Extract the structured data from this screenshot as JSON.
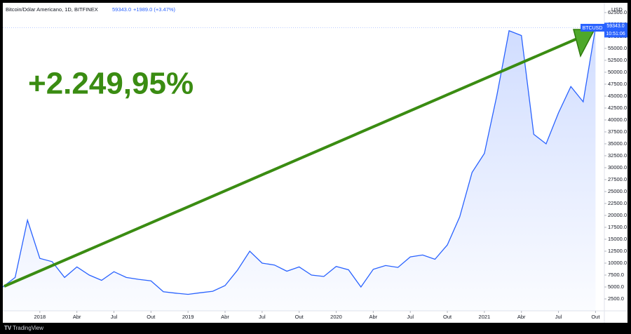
{
  "header": {
    "symbol": "Bitcoin/Dólar Americano, 1D, BITFINEX",
    "change": "+1989.0 (+3.47%)",
    "currency": "USD",
    "countdown": "10:51:06",
    "brand": "TradingView"
  },
  "chart_data": {
    "type": "line",
    "annotation": "+2.249,95%",
    "last_price": {
      "value": 59343,
      "label": "59343.0"
    },
    "x": [
      "2017-10",
      "2017-11",
      "2017-12",
      "2018-01",
      "2018-02",
      "2018-03",
      "2018-04",
      "2018-05",
      "2018-06",
      "2018-07",
      "2018-08",
      "2018-09",
      "2018-10",
      "2018-11",
      "2018-12",
      "2019-01",
      "2019-02",
      "2019-03",
      "2019-04",
      "2019-05",
      "2019-06",
      "2019-07",
      "2019-08",
      "2019-09",
      "2019-10",
      "2019-11",
      "2019-12",
      "2020-01",
      "2020-02",
      "2020-03",
      "2020-04",
      "2020-05",
      "2020-06",
      "2020-07",
      "2020-08",
      "2020-09",
      "2020-10",
      "2020-11",
      "2020-12",
      "2021-01",
      "2021-02",
      "2021-03",
      "2021-04",
      "2021-05",
      "2021-06",
      "2021-07",
      "2021-08",
      "2021-09",
      "2021-10"
    ],
    "series": [
      {
        "name": "BTCUSD",
        "color": "#2962ff",
        "values": [
          5000,
          7000,
          19000,
          11000,
          10300,
          7000,
          9200,
          7500,
          6400,
          8200,
          7000,
          6600,
          6300,
          4000,
          3700,
          3450,
          3800,
          4100,
          5300,
          8500,
          12500,
          10000,
          9600,
          8300,
          9200,
          7500,
          7200,
          9300,
          8600,
          5000,
          8700,
          9500,
          9100,
          11300,
          11700,
          10800,
          13800,
          19700,
          29000,
          33000,
          45000,
          58700,
          57700,
          37000,
          35000,
          41500,
          47000,
          43800,
          59343
        ]
      }
    ],
    "xlim": [
      "2017-10",
      "2021-11"
    ],
    "xticks": [
      {
        "value": "2018-01",
        "label": "2018"
      },
      {
        "value": "2018-04",
        "label": "Abr"
      },
      {
        "value": "2018-07",
        "label": "Jul"
      },
      {
        "value": "2018-10",
        "label": "Out"
      },
      {
        "value": "2019-01",
        "label": "2019"
      },
      {
        "value": "2019-04",
        "label": "Abr"
      },
      {
        "value": "2019-07",
        "label": "Jul"
      },
      {
        "value": "2019-10",
        "label": "Out"
      },
      {
        "value": "2020-01",
        "label": "2020"
      },
      {
        "value": "2020-04",
        "label": "Abr"
      },
      {
        "value": "2020-07",
        "label": "Jul"
      },
      {
        "value": "2020-10",
        "label": "Out"
      },
      {
        "value": "2021-01",
        "label": "2021"
      },
      {
        "value": "2021-04",
        "label": "Abr"
      },
      {
        "value": "2021-07",
        "label": "Jul"
      },
      {
        "value": "2021-10",
        "label": "Out"
      }
    ],
    "ylim": [
      0,
      64400
    ],
    "yticks": [
      {
        "value": 2500,
        "label": "2500.0"
      },
      {
        "value": 5000,
        "label": "5000.0"
      },
      {
        "value": 7500,
        "label": "7500.0"
      },
      {
        "value": 10000,
        "label": "10000.0"
      },
      {
        "value": 12500,
        "label": "12500.0"
      },
      {
        "value": 15000,
        "label": "15000.0"
      },
      {
        "value": 17500,
        "label": "17500.0"
      },
      {
        "value": 20000,
        "label": "20000.0"
      },
      {
        "value": 22500,
        "label": "22500.0"
      },
      {
        "value": 25000,
        "label": "25000.0"
      },
      {
        "value": 27500,
        "label": "27500.0"
      },
      {
        "value": 30000,
        "label": "30000.0"
      },
      {
        "value": 32500,
        "label": "32500.0"
      },
      {
        "value": 35000,
        "label": "35000.0"
      },
      {
        "value": 37500,
        "label": "37500.0"
      },
      {
        "value": 40000,
        "label": "40000.0"
      },
      {
        "value": 42500,
        "label": "42500.0"
      },
      {
        "value": 45000,
        "label": "45000.0"
      },
      {
        "value": 47500,
        "label": "47500.0"
      },
      {
        "value": 50000,
        "label": "50000.0"
      },
      {
        "value": 52500,
        "label": "52500.0"
      },
      {
        "value": 55000,
        "label": "55000.0"
      },
      {
        "value": 57500,
        "label": "57500.0"
      },
      {
        "value": 60000,
        "label": "60000.0"
      },
      {
        "value": 62500,
        "label": "62500.0"
      }
    ]
  }
}
